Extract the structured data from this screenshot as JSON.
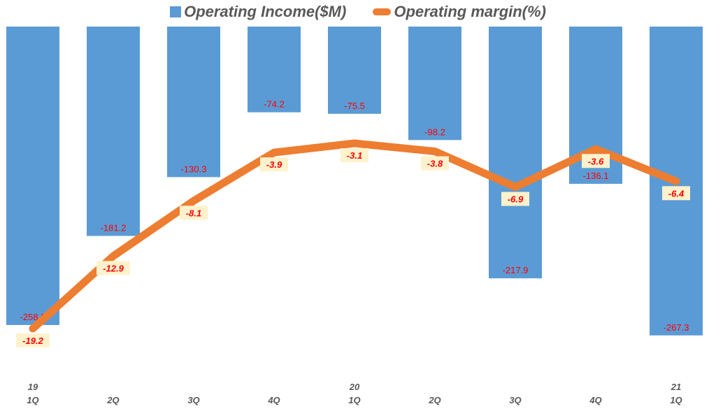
{
  "chart_data": {
    "type": "bar+line",
    "categories": [
      [
        "19",
        "1Q"
      ],
      [
        "",
        "2Q"
      ],
      [
        "",
        "3Q"
      ],
      [
        "",
        "4Q"
      ],
      [
        "20",
        "1Q"
      ],
      [
        "",
        "2Q"
      ],
      [
        "",
        "3Q"
      ],
      [
        "",
        "4Q"
      ],
      [
        "21",
        "1Q"
      ]
    ],
    "series": [
      {
        "name": "Operating Income($M)",
        "type": "bar",
        "color": "#5b9bd5",
        "values": [
          -258.3,
          -181.2,
          -130.3,
          -74.2,
          -75.5,
          -98.2,
          -217.9,
          -136.1,
          -267.3
        ],
        "labels": [
          "-258.3",
          "-181.2",
          "-130.3",
          "-74.2",
          "-75.5",
          "-98.2",
          "-217.9",
          "-136.1",
          "-267.3"
        ]
      },
      {
        "name": "Operating margin(%)",
        "type": "line",
        "color": "#ed7d31",
        "values": [
          -19.2,
          -12.9,
          -8.1,
          -3.9,
          -3.1,
          -3.8,
          -6.9,
          -3.6,
          -6.4
        ],
        "labels": [
          "-19.2",
          "-12.9",
          "-8.1",
          "-3.9",
          "-3.1",
          "-3.8",
          "-6.9",
          "-3.6",
          "-6.4"
        ]
      }
    ],
    "legend": "top",
    "grid": false,
    "label_color": "#ff0000",
    "line_label_bg": "#fff2cc"
  }
}
